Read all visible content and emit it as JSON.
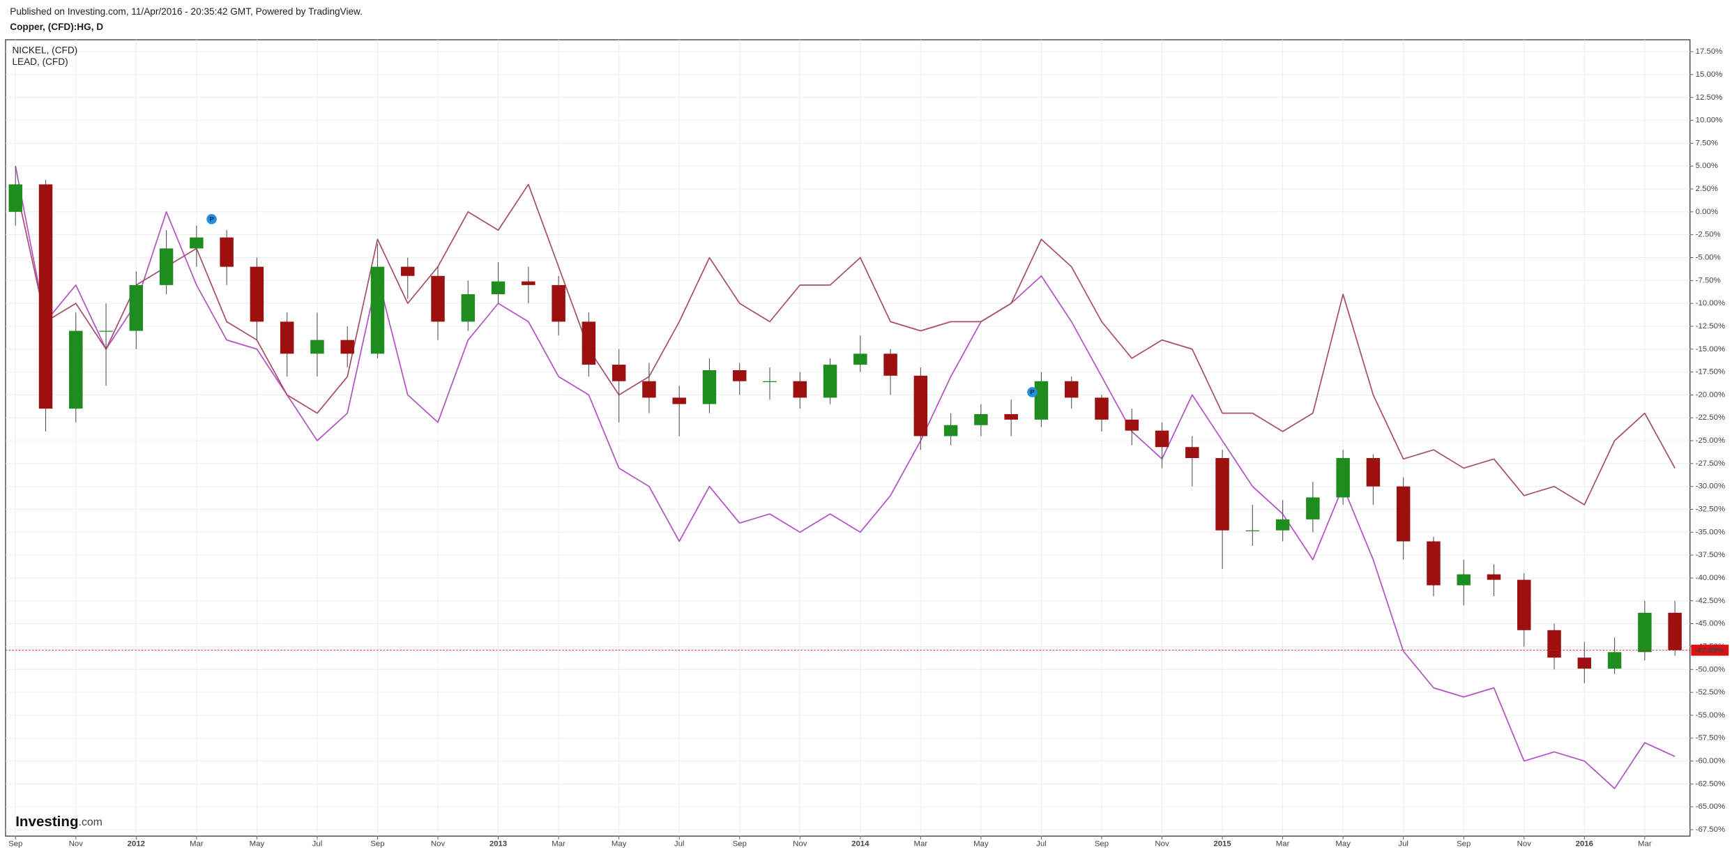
{
  "chart_data": {
    "type": "candlestick",
    "header": "Published on Investing.com, 11/Apr/2016 - 20:35:42 GMT, Powered by TradingView.",
    "title": "Copper, (CFD):HG, D",
    "x": [
      0,
      1,
      2,
      3,
      4,
      5,
      6,
      7,
      8,
      9,
      10,
      11,
      12,
      13,
      14,
      15,
      16,
      17,
      18,
      19,
      20,
      21,
      22,
      23,
      24,
      25,
      26,
      27,
      28,
      29,
      30,
      31,
      32,
      33,
      34,
      35,
      36,
      37,
      38,
      39,
      40,
      41,
      42,
      43,
      44,
      45,
      46,
      47,
      48,
      49,
      50,
      51,
      52,
      53,
      54,
      55
    ],
    "open": [
      0,
      3,
      -21.5,
      -13,
      -13,
      -8,
      -4,
      -2.8,
      -6,
      -12,
      -15.5,
      -14,
      -15.5,
      -6,
      -7,
      -12,
      -9,
      -7.6,
      -8,
      -12,
      -16.7,
      -18.5,
      -20.3,
      -21,
      -17.3,
      -18.5,
      -18.5,
      -20.3,
      -16.7,
      -15.5,
      -17.9,
      -24.5,
      -23.3,
      -22.1,
      -22.7,
      -18.5,
      -20.3,
      -22.7,
      -23.9,
      -25.7,
      -26.9,
      -34.8,
      -34.8,
      -33.6,
      -31.2,
      -26.9,
      -30,
      -36,
      -40.8,
      -39.6,
      -40.2,
      -45.7,
      -48.7,
      -49.9,
      -48.1,
      -43.8
    ],
    "high": [
      5,
      3.5,
      -11,
      -10,
      -6.5,
      -2,
      -1.5,
      -2,
      -5,
      -11,
      -11,
      -12.5,
      -3.5,
      -5,
      -6,
      -7.5,
      -5.5,
      -6,
      -7,
      -11,
      -15,
      -16.5,
      -19,
      -16,
      -16.5,
      -17,
      -17.5,
      -16,
      -13.5,
      -15,
      -17,
      -22,
      -21,
      -20.5,
      -17.5,
      -18,
      -20,
      -21.5,
      -23,
      -24.5,
      -26,
      -32,
      -31.5,
      -29.5,
      -26,
      -26.5,
      -29,
      -35.5,
      -38,
      -38.5,
      -39.5,
      -45,
      -47,
      -46.5,
      -42.5,
      -42.5
    ],
    "low": [
      -1.5,
      -24,
      -23,
      -19,
      -15,
      -9,
      -6,
      -8,
      -14,
      -18,
      -18,
      -17,
      -16,
      -9.5,
      -14,
      -13,
      -10,
      -10,
      -13.5,
      -18,
      -23,
      -22,
      -24.5,
      -22,
      -20,
      -20.5,
      -21.5,
      -21,
      -17.5,
      -20,
      -26,
      -25.5,
      -24.5,
      -24.5,
      -23.5,
      -21.5,
      -24,
      -25.5,
      -28,
      -30,
      -39,
      -36.5,
      -36,
      -35,
      -32,
      -32,
      -38,
      -42,
      -43,
      -42,
      -47.5,
      -50,
      -51.5,
      -50.5,
      -49,
      -48.5
    ],
    "close": [
      3,
      -21.5,
      -13,
      -13,
      -8,
      -4,
      -2.8,
      -6,
      -12,
      -15.5,
      -14,
      -15.5,
      -6,
      -7,
      -12,
      -9,
      -7.6,
      -8,
      -12,
      -16.7,
      -18.5,
      -20.3,
      -21,
      -17.3,
      -18.5,
      -18.5,
      -20.3,
      -16.7,
      -15.5,
      -17.9,
      -24.5,
      -23.3,
      -22.1,
      -22.7,
      -18.5,
      -20.3,
      -22.7,
      -23.9,
      -25.7,
      -26.9,
      -34.8,
      -34.8,
      -33.6,
      -31.2,
      -26.9,
      -30,
      -36,
      -40.8,
      -39.6,
      -40.2,
      -45.7,
      -48.7,
      -49.9,
      -48.1,
      -43.8,
      -47.89
    ],
    "up_color": "#1e8c1e",
    "down_color": "#9c1010",
    "series": [
      {
        "name": "NICKEL,  (CFD)",
        "color": "#b155c2",
        "values": [
          5,
          -12,
          -8,
          -15,
          -10,
          0,
          -8,
          -14,
          -15,
          -20,
          -25,
          -22,
          -7,
          -20,
          -23,
          -14,
          -10,
          -12,
          -18,
          -20,
          -28,
          -30,
          -36,
          -30,
          -34,
          -33,
          -35,
          -33,
          -35,
          -31,
          -25,
          -18,
          -12,
          -10,
          -7,
          -12,
          -18,
          -24,
          -27,
          -20,
          -25,
          -30,
          -33,
          -38,
          -30,
          -38,
          -48,
          -52,
          -53,
          -52,
          -60,
          -59,
          -60,
          -63,
          -58,
          -59.5
        ]
      },
      {
        "name": "LEAD,  (CFD)",
        "color": "#a6506f",
        "values": [
          3,
          -12,
          -10,
          -15,
          -8,
          -6,
          -4,
          -12,
          -14,
          -20,
          -22,
          -18,
          -3,
          -10,
          -6,
          0,
          -2,
          3,
          -6,
          -15,
          -20,
          -18,
          -12,
          -5,
          -10,
          -12,
          -8,
          -8,
          -5,
          -12,
          -13,
          -12,
          -12,
          -10,
          -3,
          -6,
          -12,
          -16,
          -14,
          -15,
          -22,
          -22,
          -24,
          -22,
          -9,
          -20,
          -27,
          -26,
          -28,
          -27,
          -31,
          -30,
          -32,
          -25,
          -22,
          -28
        ]
      }
    ],
    "price_line": {
      "value": -47.89,
      "label": "-47.89%",
      "color": "#e01010"
    },
    "annotations": [
      {
        "text": "P",
        "x": 6.5,
        "y": -0.8
      },
      {
        "text": "P",
        "x": 33.7,
        "y": -19.7
      }
    ],
    "watermark": {
      "brand": "Investing",
      "suffix": ".com"
    },
    "grid": true,
    "xlim": [
      -0.33,
      55.5
    ],
    "ylim": [
      -68.2,
      18.8
    ],
    "xticks": [
      {
        "value": 0,
        "label": "Sep"
      },
      {
        "value": 2,
        "label": "Nov"
      },
      {
        "value": 4,
        "label": "2012"
      },
      {
        "value": 6,
        "label": "Mar"
      },
      {
        "value": 8,
        "label": "May"
      },
      {
        "value": 10,
        "label": "Jul"
      },
      {
        "value": 12,
        "label": "Sep"
      },
      {
        "value": 14,
        "label": "Nov"
      },
      {
        "value": 16,
        "label": "2013"
      },
      {
        "value": 18,
        "label": "Mar"
      },
      {
        "value": 20,
        "label": "May"
      },
      {
        "value": 22,
        "label": "Jul"
      },
      {
        "value": 24,
        "label": "Sep"
      },
      {
        "value": 26,
        "label": "Nov"
      },
      {
        "value": 28,
        "label": "2014"
      },
      {
        "value": 30,
        "label": "Mar"
      },
      {
        "value": 32,
        "label": "May"
      },
      {
        "value": 34,
        "label": "Jul"
      },
      {
        "value": 36,
        "label": "Sep"
      },
      {
        "value": 38,
        "label": "Nov"
      },
      {
        "value": 40,
        "label": "2015"
      },
      {
        "value": 42,
        "label": "Mar"
      },
      {
        "value": 44,
        "label": "May"
      },
      {
        "value": 46,
        "label": "Jul"
      },
      {
        "value": 48,
        "label": "Sep"
      },
      {
        "value": 50,
        "label": "Nov"
      },
      {
        "value": 52,
        "label": "2016"
      },
      {
        "value": 54,
        "label": "Mar"
      }
    ],
    "yticks": [
      {
        "value": 17.5,
        "label": "17.50%"
      },
      {
        "value": 15,
        "label": "15.00%"
      },
      {
        "value": 12.5,
        "label": "12.50%"
      },
      {
        "value": 10,
        "label": "10.00%"
      },
      {
        "value": 7.5,
        "label": "7.50%"
      },
      {
        "value": 5,
        "label": "5.00%"
      },
      {
        "value": 2.5,
        "label": "2.50%"
      },
      {
        "value": 0,
        "label": "0.00%"
      },
      {
        "value": -2.5,
        "label": "-2.50%"
      },
      {
        "value": -5,
        "label": "-5.00%"
      },
      {
        "value": -7.5,
        "label": "-7.50%"
      },
      {
        "value": -10,
        "label": "-10.00%"
      },
      {
        "value": -12.5,
        "label": "-12.50%"
      },
      {
        "value": -15,
        "label": "-15.00%"
      },
      {
        "value": -17.5,
        "label": "-17.50%"
      },
      {
        "value": -20,
        "label": "-20.00%"
      },
      {
        "value": -22.5,
        "label": "-22.50%"
      },
      {
        "value": -25,
        "label": "-25.00%"
      },
      {
        "value": -27.5,
        "label": "-27.50%"
      },
      {
        "value": -30,
        "label": "-30.00%"
      },
      {
        "value": -32.5,
        "label": "-32.50%"
      },
      {
        "value": -35,
        "label": "-35.00%"
      },
      {
        "value": -37.5,
        "label": "-37.50%"
      },
      {
        "value": -40,
        "label": "-40.00%"
      },
      {
        "value": -42.5,
        "label": "-42.50%"
      },
      {
        "value": -45,
        "label": "-45.00%"
      },
      {
        "value": -47.5,
        "label": "-47.50%"
      },
      {
        "value": -50,
        "label": "-50.00%"
      },
      {
        "value": -52.5,
        "label": "-52.50%"
      },
      {
        "value": -55,
        "label": "-55.00%"
      },
      {
        "value": -57.5,
        "label": "-57.50%"
      },
      {
        "value": -60,
        "label": "-60.00%"
      },
      {
        "value": -62.5,
        "label": "-62.50%"
      },
      {
        "value": -65,
        "label": "-65.00%"
      },
      {
        "value": -67.5,
        "label": "-67.50%"
      }
    ]
  }
}
